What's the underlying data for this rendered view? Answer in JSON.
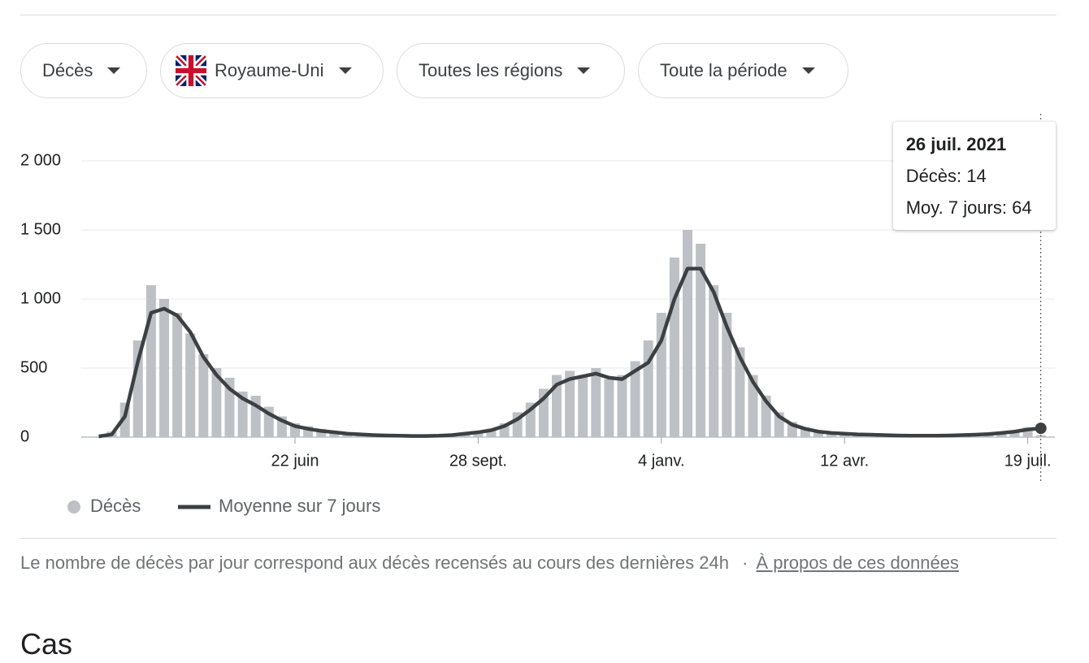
{
  "filters": [
    "Décès",
    "Royaume-Uni",
    "Toutes les régions",
    "Toute la période"
  ],
  "chart_data": {
    "type": "combo",
    "categories": [
      null,
      null,
      null,
      null,
      null,
      null,
      null,
      null,
      null,
      null,
      null,
      null,
      null,
      null,
      null,
      "22 juin",
      null,
      null,
      null,
      null,
      null,
      null,
      null,
      null,
      null,
      null,
      null,
      null,
      null,
      "28 sept.",
      null,
      null,
      null,
      null,
      null,
      null,
      null,
      null,
      null,
      null,
      null,
      null,
      null,
      "4 janv.",
      null,
      null,
      null,
      null,
      null,
      null,
      null,
      null,
      null,
      null,
      null,
      null,
      null,
      "12 avr.",
      null,
      null,
      null,
      null,
      null,
      null,
      null,
      null,
      null,
      null,
      null,
      null,
      null,
      "19 juil.",
      null
    ],
    "series": [
      {
        "name": "Décès",
        "type": "bar",
        "color": "#bdc1c6",
        "values": [
          5,
          40,
          250,
          700,
          1100,
          1000,
          900,
          750,
          600,
          500,
          430,
          330,
          300,
          220,
          150,
          100,
          80,
          60,
          40,
          30,
          25,
          20,
          15,
          12,
          10,
          10,
          10,
          15,
          25,
          40,
          60,
          100,
          180,
          250,
          350,
          450,
          480,
          450,
          500,
          420,
          450,
          550,
          700,
          900,
          1300,
          1500,
          1400,
          1100,
          900,
          650,
          450,
          300,
          180,
          110,
          70,
          45,
          30,
          25,
          20,
          18,
          15,
          12,
          10,
          10,
          10,
          12,
          15,
          20,
          25,
          30,
          45,
          70,
          14
        ]
      },
      {
        "name": "Moyenne sur 7 jours",
        "type": "line",
        "color": "#3c4043",
        "values": [
          5,
          20,
          150,
          550,
          900,
          930,
          880,
          760,
          580,
          450,
          350,
          280,
          230,
          170,
          120,
          80,
          60,
          45,
          35,
          25,
          20,
          15,
          12,
          10,
          8,
          8,
          10,
          15,
          25,
          35,
          50,
          80,
          130,
          200,
          280,
          380,
          420,
          440,
          460,
          430,
          420,
          480,
          540,
          700,
          1000,
          1220,
          1220,
          1050,
          800,
          580,
          400,
          260,
          150,
          90,
          60,
          40,
          30,
          25,
          20,
          18,
          15,
          12,
          10,
          10,
          10,
          12,
          15,
          18,
          22,
          30,
          40,
          55,
          64
        ]
      }
    ],
    "ylim": [
      0,
      2000
    ],
    "yticks": [
      0,
      500,
      {
        "value": 1000,
        "label": "1 000"
      },
      {
        "value": 1500,
        "label": "1 500"
      },
      {
        "value": 2000,
        "label": "2 000"
      }
    ],
    "grid": true,
    "tooltip": {
      "title": "26 juil. 2021",
      "labels": [
        "Décès:",
        "Moy. 7 jours:"
      ]
    }
  },
  "footnote": {
    "text": "Le nombre de décès par jour correspond aux décès recensés au cours des dernières 24h",
    "separator": "·",
    "link": "À propos de ces données"
  },
  "section_heading": "Cas"
}
